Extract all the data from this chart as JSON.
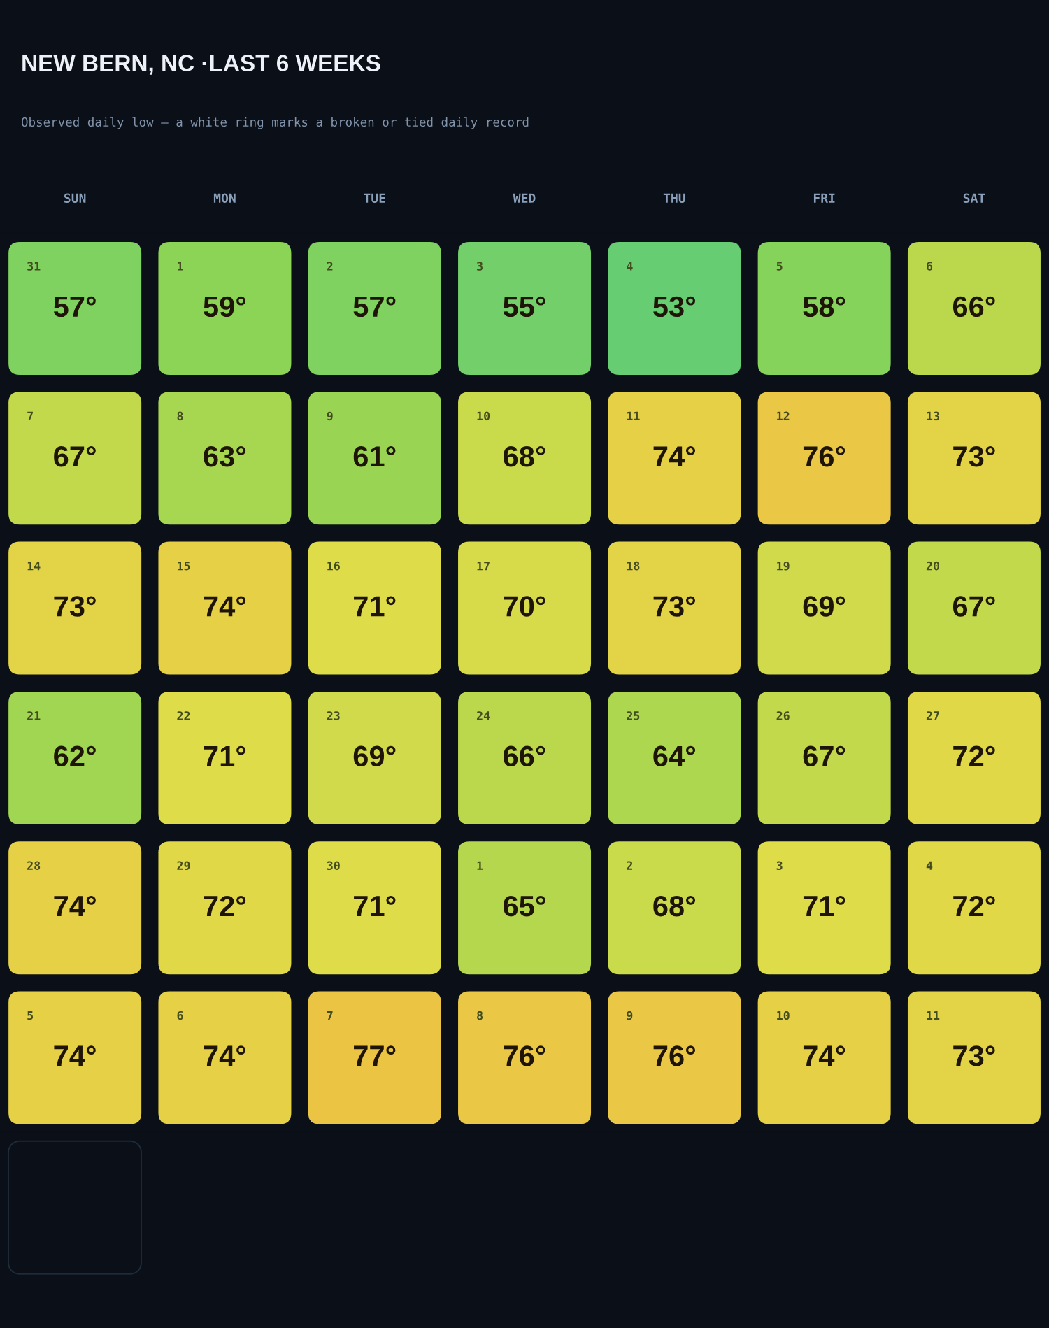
{
  "chart_data": {
    "type": "heatmap",
    "title": "NEW BERN, NC ·LAST 6 WEEKS",
    "subtitle": "Observed daily low — a white ring marks a broken or tied daily record",
    "categories": [
      "SUN",
      "MON",
      "TUE",
      "WED",
      "THU",
      "FRI",
      "SAT"
    ],
    "y_categories": [
      null,
      null,
      null,
      null,
      null,
      null
    ],
    "cells": [
      [
        57,
        59,
        57,
        55,
        53,
        58,
        66
      ],
      [
        67,
        63,
        61,
        68,
        74,
        76,
        73
      ],
      [
        73,
        74,
        71,
        70,
        73,
        69,
        67
      ],
      [
        62,
        71,
        69,
        66,
        64,
        67,
        72
      ],
      [
        74,
        72,
        71,
        65,
        68,
        71,
        72
      ],
      [
        74,
        74,
        77,
        76,
        76,
        74,
        73
      ]
    ],
    "cell_labels": [
      [
        "57°",
        "59°",
        "57°",
        "55°",
        "53°",
        "58°",
        "66°"
      ],
      [
        "67°",
        "63°",
        "61°",
        "68°",
        "74°",
        "76°",
        "73°"
      ],
      [
        "73°",
        "74°",
        "71°",
        "70°",
        "73°",
        "69°",
        "67°"
      ],
      [
        "62°",
        "71°",
        "69°",
        "66°",
        "64°",
        "67°",
        "72°"
      ],
      [
        "74°",
        "72°",
        "71°",
        "65°",
        "68°",
        "71°",
        "72°"
      ],
      [
        "74°",
        "74°",
        "77°",
        "76°",
        "76°",
        "74°",
        "73°"
      ]
    ],
    "annotations": [
      "31",
      "1",
      "2",
      "3",
      "4",
      "5",
      "6",
      "7",
      "8",
      "9",
      "10",
      "11",
      "12",
      "13",
      "14",
      "15",
      "16",
      "17",
      "18",
      "19",
      "20",
      "21",
      "22",
      "23",
      "24",
      "25",
      "26",
      "27",
      "28",
      "29",
      "30",
      "1",
      "2",
      "3",
      "4",
      "5",
      "6",
      "7",
      "8",
      "9",
      "10",
      "11"
    ],
    "colors": [
      "#66cd72",
      "#8cd456",
      "#b4d74e",
      "#dedc48",
      "#ecc444"
    ]
  }
}
